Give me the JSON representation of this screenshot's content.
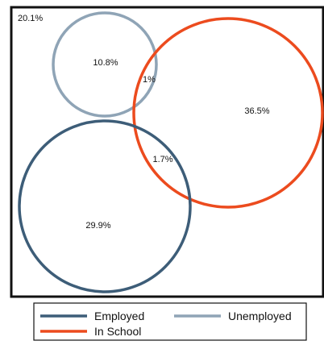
{
  "colors": {
    "employed": "#3d5d78",
    "unemployed": "#8fa4b6",
    "in_school": "#ec4b1e",
    "frame": "#111111"
  },
  "regions": {
    "outside": "20.1%",
    "unemployed_only": "10.8%",
    "unemployed_and_school": "1%",
    "school_only": "36.5%",
    "employed_and_school": "1.7%",
    "employed_only": "29.9%"
  },
  "legend": {
    "employed": "Employed",
    "unemployed": "Unemployed",
    "in_school": "In School"
  }
}
